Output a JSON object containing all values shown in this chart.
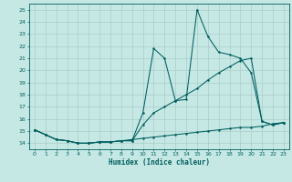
{
  "xlabel": "Humidex (Indice chaleur)",
  "xlim": [
    -0.5,
    23.5
  ],
  "ylim": [
    13.5,
    25.5
  ],
  "yticks": [
    14,
    15,
    16,
    17,
    18,
    19,
    20,
    21,
    22,
    23,
    24,
    25
  ],
  "xticks": [
    0,
    1,
    2,
    3,
    4,
    5,
    6,
    7,
    8,
    9,
    10,
    11,
    12,
    13,
    14,
    15,
    16,
    17,
    18,
    19,
    20,
    21,
    22,
    23
  ],
  "bg_color": "#c6e8e4",
  "grid_color": "#a8ceca",
  "line_color": "#005f5f",
  "line1_y": [
    15.1,
    14.7,
    14.3,
    14.2,
    14.0,
    14.0,
    14.1,
    14.1,
    14.2,
    14.2,
    16.5,
    21.8,
    21.0,
    17.5,
    17.6,
    25.0,
    22.8,
    21.5,
    21.3,
    21.0,
    19.8,
    15.8,
    15.5,
    15.7
  ],
  "line2_y": [
    15.1,
    14.7,
    14.3,
    14.2,
    14.0,
    14.0,
    14.1,
    14.1,
    14.2,
    14.2,
    15.5,
    16.5,
    17.0,
    17.5,
    18.0,
    18.5,
    19.2,
    19.8,
    20.3,
    20.8,
    21.0,
    15.8,
    15.5,
    15.7
  ],
  "line3_y": [
    15.1,
    14.7,
    14.3,
    14.2,
    14.0,
    14.0,
    14.1,
    14.1,
    14.2,
    14.3,
    14.4,
    14.5,
    14.6,
    14.7,
    14.8,
    14.9,
    15.0,
    15.1,
    15.2,
    15.3,
    15.3,
    15.4,
    15.6,
    15.7
  ]
}
